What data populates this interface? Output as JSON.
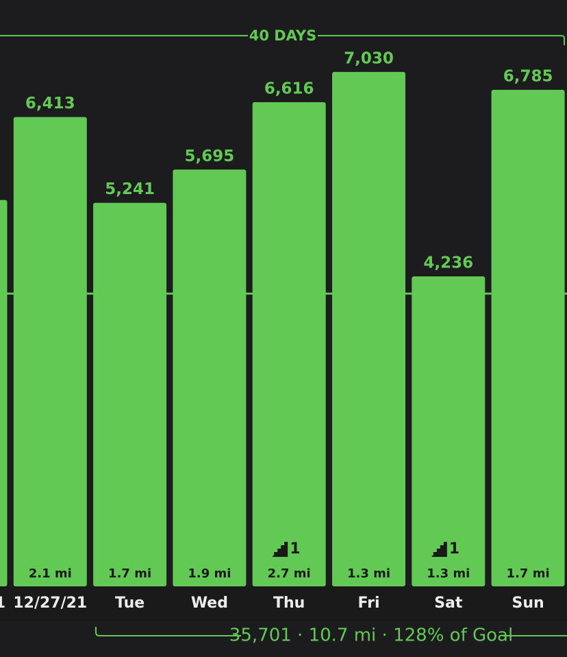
{
  "chart_data": {
    "type": "bar",
    "range_label": "40 DAYS",
    "summary": "35,701 · 10.7 mi · 128% of Goal",
    "categories": [
      "1",
      "12/27/21",
      "Tue",
      "Wed",
      "Thu",
      "Fri",
      "Sat",
      "Sun"
    ],
    "values": [
      5280,
      6413,
      5241,
      5695,
      6616,
      7030,
      4236,
      6785
    ],
    "value_labels": [
      null,
      "6,413",
      "5,241",
      "5,695",
      "6,616",
      "7,030",
      "4,236",
      "6,785"
    ],
    "distances": [
      null,
      "2.1 mi",
      "1.7 mi",
      "1.9 mi",
      "2.7 mi",
      "1.3 mi",
      "1.3 mi",
      "1.7 mi"
    ],
    "flights": [
      null,
      null,
      null,
      null,
      1,
      null,
      1,
      null
    ],
    "goal": 4000,
    "color": "#63c955",
    "ylim": [
      0,
      7900
    ]
  }
}
